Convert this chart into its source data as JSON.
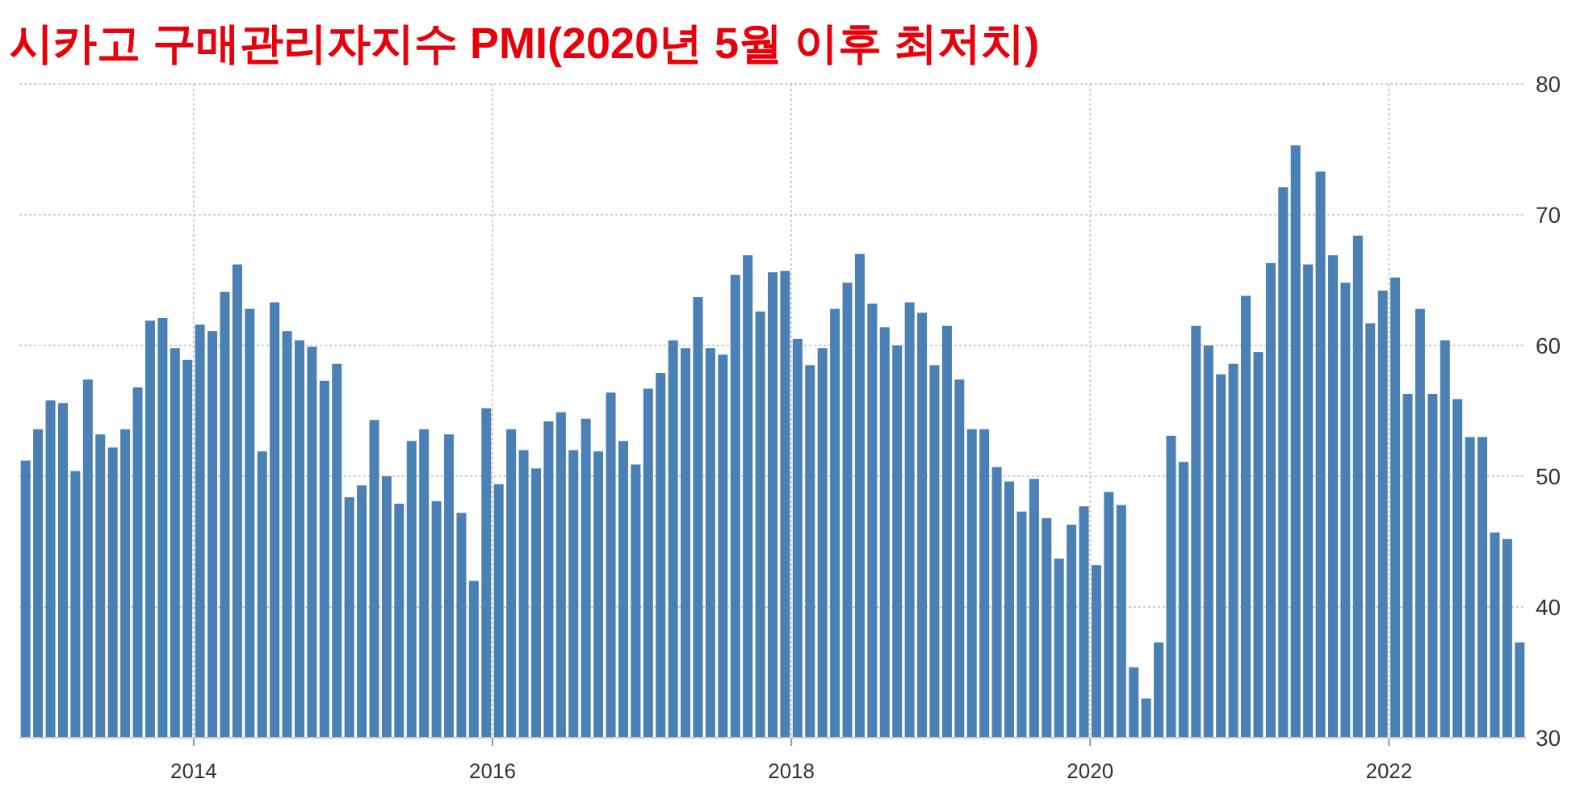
{
  "chart_data": {
    "type": "bar",
    "title": "시카고 구매관리자지수 PMI(2020년 5월 이후 최저치)",
    "x": [
      "2012-11",
      "2012-12",
      "2013-01",
      "2013-02",
      "2013-03",
      "2013-04",
      "2013-05",
      "2013-06",
      "2013-07",
      "2013-08",
      "2013-09",
      "2013-10",
      "2013-11",
      "2013-12",
      "2014-01",
      "2014-02",
      "2014-03",
      "2014-04",
      "2014-05",
      "2014-06",
      "2014-07",
      "2014-08",
      "2014-09",
      "2014-10",
      "2014-11",
      "2014-12",
      "2015-01",
      "2015-02",
      "2015-03",
      "2015-04",
      "2015-05",
      "2015-06",
      "2015-07",
      "2015-08",
      "2015-09",
      "2015-10",
      "2015-11",
      "2015-12",
      "2016-01",
      "2016-02",
      "2016-03",
      "2016-04",
      "2016-05",
      "2016-06",
      "2016-07",
      "2016-08",
      "2016-09",
      "2016-10",
      "2016-11",
      "2016-12",
      "2017-01",
      "2017-02",
      "2017-03",
      "2017-04",
      "2017-05",
      "2017-06",
      "2017-07",
      "2017-08",
      "2017-09",
      "2017-10",
      "2017-11",
      "2017-12",
      "2018-01",
      "2018-02",
      "2018-03",
      "2018-04",
      "2018-05",
      "2018-06",
      "2018-07",
      "2018-08",
      "2018-09",
      "2018-10",
      "2018-11",
      "2018-12",
      "2019-01",
      "2019-02",
      "2019-03",
      "2019-04",
      "2019-05",
      "2019-06",
      "2019-07",
      "2019-08",
      "2019-09",
      "2019-10",
      "2019-11",
      "2019-12",
      "2020-01",
      "2020-02",
      "2020-03",
      "2020-04",
      "2020-05",
      "2020-06",
      "2020-07",
      "2020-08",
      "2020-09",
      "2020-10",
      "2020-11",
      "2020-12",
      "2021-01",
      "2021-02",
      "2021-03",
      "2021-04",
      "2021-05",
      "2021-06",
      "2021-07",
      "2021-08",
      "2021-09",
      "2021-10",
      "2021-11",
      "2021-12",
      "2022-01",
      "2022-02",
      "2022-03",
      "2022-04",
      "2022-05",
      "2022-06",
      "2022-07",
      "2022-08",
      "2022-09",
      "2022-10",
      "2022-11"
    ],
    "values": [
      51.2,
      53.6,
      55.8,
      55.6,
      50.4,
      57.4,
      53.2,
      52.2,
      53.6,
      56.8,
      61.9,
      62.1,
      59.8,
      58.9,
      61.6,
      61.1,
      64.1,
      66.2,
      62.8,
      51.9,
      63.3,
      61.1,
      60.4,
      59.9,
      57.3,
      58.6,
      48.4,
      49.3,
      54.3,
      50.0,
      47.9,
      52.7,
      53.6,
      48.1,
      53.2,
      47.2,
      42.0,
      55.2,
      49.4,
      53.6,
      52.0,
      50.6,
      54.2,
      54.9,
      52.0,
      54.4,
      51.9,
      56.4,
      52.7,
      50.9,
      56.7,
      57.9,
      60.4,
      59.8,
      63.7,
      59.8,
      59.3,
      65.4,
      66.9,
      62.6,
      65.6,
      65.7,
      60.5,
      58.5,
      59.8,
      62.8,
      64.8,
      67.0,
      63.2,
      61.4,
      60.0,
      63.3,
      62.5,
      58.5,
      61.5,
      57.4,
      53.6,
      53.6,
      50.7,
      49.6,
      47.3,
      49.8,
      46.8,
      43.7,
      46.3,
      47.7,
      43.2,
      48.8,
      47.8,
      35.4,
      33.0,
      37.3,
      53.1,
      51.1,
      61.5,
      60.0,
      57.8,
      58.6,
      63.8,
      59.5,
      66.3,
      72.1,
      75.3,
      66.2,
      73.3,
      66.9,
      64.8,
      68.4,
      61.7,
      64.2,
      65.2,
      56.3,
      62.8,
      56.3,
      60.4,
      55.9,
      53.0,
      53.0,
      45.7,
      45.2,
      37.3
    ],
    "color": "#4a80b4",
    "xlim": [
      "2012-11",
      "2022-12"
    ],
    "xticks": [
      "2014",
      "2016",
      "2018",
      "2020",
      "2022"
    ],
    "ylim": [
      30,
      80
    ],
    "yticks": [
      30,
      40,
      50,
      60,
      70,
      80
    ],
    "grid": true
  }
}
